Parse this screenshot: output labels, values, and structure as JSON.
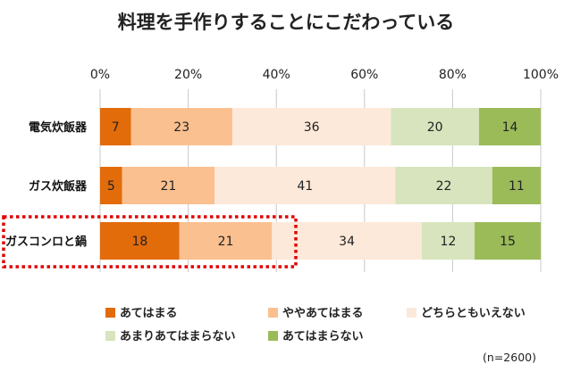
{
  "chart_data": {
    "type": "bar",
    "stacked": true,
    "orientation": "horizontal",
    "percent_axis": true,
    "title": "料理を手作りすることにこだわっている",
    "categories": [
      "電気炊飯器",
      "ガス炊飯器",
      "ガスコンロと鍋"
    ],
    "xlim": [
      0,
      100
    ],
    "xticks": [
      "0%",
      "20%",
      "40%",
      "60%",
      "80%",
      "100%"
    ],
    "grid": true,
    "series": [
      {
        "name": "あてはまる",
        "values": [
          7,
          5,
          18
        ],
        "color": "#E26B0A"
      },
      {
        "name": "ややあてはまる",
        "values": [
          23,
          21,
          21
        ],
        "color": "#FAC090"
      },
      {
        "name": "どちらともいえない",
        "values": [
          36,
          41,
          34
        ],
        "color": "#FDE9D9"
      },
      {
        "name": "あまりあてはまらない",
        "values": [
          20,
          22,
          12
        ],
        "color": "#D7E4BD"
      },
      {
        "name": "あてはまらない",
        "values": [
          14,
          11,
          15
        ],
        "color": "#9BBB59"
      }
    ],
    "highlight": {
      "category": "ガスコンロと鍋",
      "color": "#E00000"
    },
    "legend_position": "bottom",
    "note": "(n=2600)"
  }
}
